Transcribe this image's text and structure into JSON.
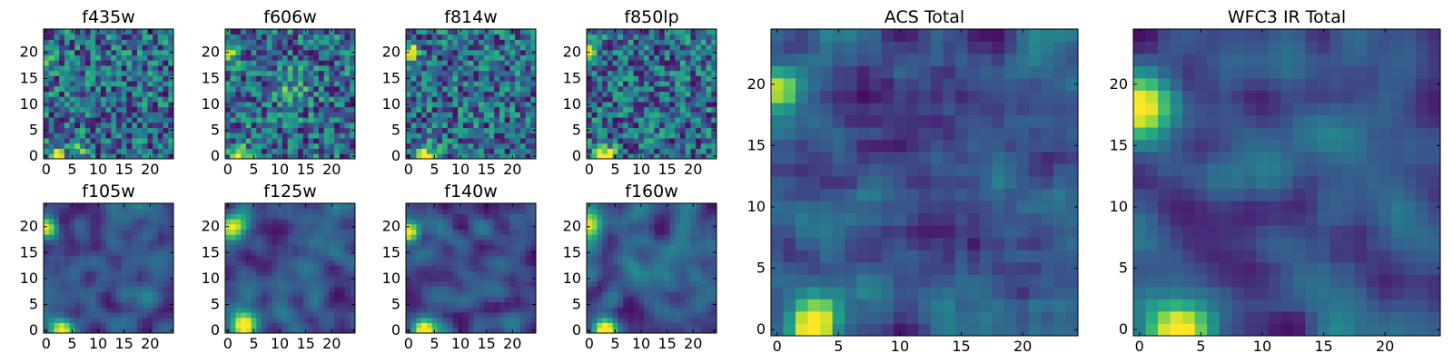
{
  "figure": {
    "background": "#ffffff"
  },
  "chart_data": [
    {
      "type": "heatmap",
      "title": "f435w",
      "colormap": "viridis",
      "grid": false,
      "xlim": [
        -0.5,
        24.5
      ],
      "ylim": [
        -0.5,
        24.5
      ],
      "xticks": [
        0,
        5,
        10,
        15,
        20
      ],
      "yticks": [
        0,
        5,
        10,
        15,
        20
      ],
      "xticklabels": [
        "0",
        "5",
        "10",
        "15",
        "20"
      ],
      "yticklabels": [
        "0",
        "5",
        "10",
        "15",
        "20"
      ],
      "texture": "noisy",
      "peaks": [
        {
          "x": 0,
          "y": 18,
          "sigma": 1.2,
          "amp": 0.45
        },
        {
          "x": 2,
          "y": 0,
          "sigma": 1.4,
          "amp": 0.45
        },
        {
          "x": 6,
          "y": 1,
          "sigma": 1.0,
          "amp": 0.3
        }
      ]
    },
    {
      "type": "heatmap",
      "title": "f606w",
      "colormap": "viridis",
      "grid": false,
      "xlim": [
        -0.5,
        24.5
      ],
      "ylim": [
        -0.5,
        24.5
      ],
      "xticks": [
        0,
        5,
        10,
        15,
        20
      ],
      "yticks": [
        0,
        5,
        10,
        15,
        20
      ],
      "xticklabels": [
        "0",
        "5",
        "10",
        "15",
        "20"
      ],
      "yticklabels": [
        "0",
        "5",
        "10",
        "15",
        "20"
      ],
      "texture": "noisy",
      "peaks": [
        {
          "x": 0,
          "y": 20,
          "sigma": 1.2,
          "amp": 0.7
        },
        {
          "x": 2,
          "y": 0,
          "sigma": 1.5,
          "amp": 0.7
        },
        {
          "x": 12,
          "y": 13,
          "sigma": 2.5,
          "amp": 0.2
        }
      ]
    },
    {
      "type": "heatmap",
      "title": "f814w",
      "colormap": "viridis",
      "grid": false,
      "xlim": [
        -0.5,
        24.5
      ],
      "ylim": [
        -0.5,
        24.5
      ],
      "xticks": [
        0,
        5,
        10,
        15,
        20
      ],
      "yticks": [
        0,
        5,
        10,
        15,
        20
      ],
      "xticklabels": [
        "0",
        "5",
        "10",
        "15",
        "20"
      ],
      "yticklabels": [
        "0",
        "5",
        "10",
        "15",
        "20"
      ],
      "texture": "noisy",
      "peaks": [
        {
          "x": 0,
          "y": 20,
          "sigma": 1.1,
          "amp": 0.85
        },
        {
          "x": 3,
          "y": 0,
          "sigma": 1.4,
          "amp": 0.85
        }
      ]
    },
    {
      "type": "heatmap",
      "title": "f850lp",
      "colormap": "viridis",
      "grid": false,
      "xlim": [
        -0.5,
        24.5
      ],
      "ylim": [
        -0.5,
        24.5
      ],
      "xticks": [
        0,
        5,
        10,
        15,
        20
      ],
      "yticks": [
        0,
        5,
        10,
        15,
        20
      ],
      "xticklabels": [
        "0",
        "5",
        "10",
        "15",
        "20"
      ],
      "yticklabels": [
        "0",
        "5",
        "10",
        "15",
        "20"
      ],
      "texture": "noisy",
      "peaks": [
        {
          "x": 0,
          "y": 20,
          "sigma": 1.1,
          "amp": 0.75
        },
        {
          "x": 3,
          "y": 0,
          "sigma": 1.4,
          "amp": 0.85
        }
      ]
    },
    {
      "type": "heatmap",
      "title": "f105w",
      "colormap": "viridis",
      "grid": false,
      "xlim": [
        -0.5,
        24.5
      ],
      "ylim": [
        -0.5,
        24.5
      ],
      "xticks": [
        0,
        5,
        10,
        15,
        20
      ],
      "yticks": [
        0,
        5,
        10,
        15,
        20
      ],
      "xticklabels": [
        "0",
        "5",
        "10",
        "15",
        "20"
      ],
      "yticklabels": [
        "0",
        "5",
        "10",
        "15",
        "20"
      ],
      "texture": "smooth",
      "peaks": [
        {
          "x": 0,
          "y": 20,
          "sigma": 1.5,
          "amp": 0.8
        },
        {
          "x": 3,
          "y": 0,
          "sigma": 1.6,
          "amp": 0.85
        }
      ]
    },
    {
      "type": "heatmap",
      "title": "f125w",
      "colormap": "viridis",
      "grid": false,
      "xlim": [
        -0.5,
        24.5
      ],
      "ylim": [
        -0.5,
        24.5
      ],
      "xticks": [
        0,
        5,
        10,
        15,
        20
      ],
      "yticks": [
        0,
        5,
        10,
        15,
        20
      ],
      "xticklabels": [
        "0",
        "5",
        "10",
        "15",
        "20"
      ],
      "yticklabels": [
        "0",
        "5",
        "10",
        "15",
        "20"
      ],
      "texture": "smooth",
      "peaks": [
        {
          "x": 1,
          "y": 20,
          "sigma": 2.0,
          "amp": 0.7
        },
        {
          "x": 3,
          "y": 1,
          "sigma": 1.8,
          "amp": 0.75
        }
      ]
    },
    {
      "type": "heatmap",
      "title": "f140w",
      "colormap": "viridis",
      "grid": false,
      "xlim": [
        -0.5,
        24.5
      ],
      "ylim": [
        -0.5,
        24.5
      ],
      "xticks": [
        0,
        5,
        10,
        15,
        20
      ],
      "yticks": [
        0,
        5,
        10,
        15,
        20
      ],
      "xticklabels": [
        "0",
        "5",
        "10",
        "15",
        "20"
      ],
      "yticklabels": [
        "0",
        "5",
        "10",
        "15",
        "20"
      ],
      "texture": "smooth",
      "peaks": [
        {
          "x": 0,
          "y": 19,
          "sigma": 1.3,
          "amp": 0.85
        },
        {
          "x": 3,
          "y": 0,
          "sigma": 1.5,
          "amp": 0.85
        }
      ]
    },
    {
      "type": "heatmap",
      "title": "f160w",
      "colormap": "viridis",
      "grid": false,
      "xlim": [
        -0.5,
        24.5
      ],
      "ylim": [
        -0.5,
        24.5
      ],
      "xticks": [
        0,
        5,
        10,
        15,
        20
      ],
      "yticks": [
        0,
        5,
        10,
        15,
        20
      ],
      "xticklabels": [
        "0",
        "5",
        "10",
        "15",
        "20"
      ],
      "yticklabels": [
        "0",
        "5",
        "10",
        "15",
        "20"
      ],
      "texture": "smooth",
      "peaks": [
        {
          "x": 0,
          "y": 20,
          "sigma": 1.8,
          "amp": 0.8
        },
        {
          "x": 3,
          "y": 0,
          "sigma": 1.6,
          "amp": 0.85
        },
        {
          "x": 13,
          "y": 12,
          "sigma": 2.0,
          "amp": 0.2
        }
      ]
    },
    {
      "type": "heatmap",
      "title": "ACS Total",
      "colormap": "viridis",
      "grid": false,
      "xlim": [
        -0.5,
        24.5
      ],
      "ylim": [
        -0.5,
        24.5
      ],
      "xticks": [
        0,
        5,
        10,
        15,
        20
      ],
      "yticks": [
        0,
        5,
        10,
        15,
        20
      ],
      "xticklabels": [
        "0",
        "5",
        "10",
        "15",
        "20"
      ],
      "yticklabels": [
        "0",
        "5",
        "10",
        "15",
        "20"
      ],
      "texture": "medium",
      "peaks": [
        {
          "x": 0,
          "y": 19.5,
          "sigma": 1.2,
          "amp": 0.75
        },
        {
          "x": 3,
          "y": 0.5,
          "sigma": 1.5,
          "amp": 0.85
        }
      ]
    },
    {
      "type": "heatmap",
      "title": "WFC3 IR Total",
      "colormap": "viridis",
      "grid": false,
      "xlim": [
        -0.5,
        24.5
      ],
      "ylim": [
        -0.5,
        24.5
      ],
      "xticks": [
        0,
        5,
        10,
        15,
        20
      ],
      "yticks": [
        0,
        5,
        10,
        15,
        20
      ],
      "xticklabels": [
        "0",
        "5",
        "10",
        "15",
        "20"
      ],
      "yticklabels": [
        "0",
        "5",
        "10",
        "15",
        "20"
      ],
      "texture": "smooth",
      "peaks": [
        {
          "x": 0,
          "y": 18.5,
          "sigma": 1.8,
          "amp": 0.85
        },
        {
          "x": 3,
          "y": 0,
          "sigma": 1.8,
          "amp": 0.9
        }
      ]
    }
  ]
}
